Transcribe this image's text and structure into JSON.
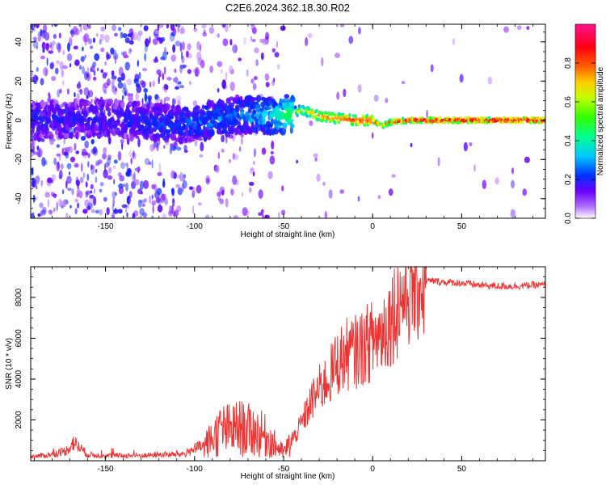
{
  "title": "C2E6.2024.362.18.30.R02",
  "chart_data": [
    {
      "type": "heatmap",
      "xlabel": "Height of straight line (km)",
      "ylabel": "Frequency (Hz)",
      "xlim": [
        -192,
        97
      ],
      "ylim": [
        -50,
        49
      ],
      "xticks": [
        -150,
        -100,
        -50,
        0,
        50
      ],
      "yticks": [
        -40,
        -20,
        0,
        20,
        40
      ],
      "colorbar": {
        "label": "Normalized spectral amplitude",
        "range": [
          0.0,
          1.0
        ],
        "ticks": [
          0.0,
          0.2,
          0.4,
          0.6,
          0.8
        ],
        "tick_labels": [
          "0.0",
          "0.2",
          "0.4",
          "0.6",
          "0.8"
        ],
        "colormap": [
          "#ffffff",
          "#7a00ff",
          "#0022ff",
          "#00e0ff",
          "#00ff44",
          "#f0ff00",
          "#ff7700",
          "#ff0000",
          "#ff0099"
        ]
      },
      "ridge": {
        "x": [
          -192,
          -150,
          -110,
          -90,
          -75,
          -60,
          -50,
          -40,
          -35,
          -30,
          -20,
          -10,
          0,
          5,
          10,
          20,
          40,
          97
        ],
        "frequency": [
          0,
          1,
          -2,
          0,
          3,
          2,
          3,
          5,
          4,
          2,
          1,
          0,
          0,
          -3,
          -1,
          0,
          0,
          0
        ],
        "amplitude": [
          0.2,
          0.2,
          0.25,
          0.3,
          0.3,
          0.35,
          0.45,
          0.6,
          0.7,
          0.75,
          0.8,
          0.85,
          0.85,
          0.7,
          0.85,
          0.9,
          0.95,
          0.95
        ]
      }
    },
    {
      "type": "line",
      "xlabel": "Height of straight line (km)",
      "ylabel": "SNR (10 * v/v)",
      "xlim": [
        -192,
        97
      ],
      "ylim": [
        0,
        9500
      ],
      "xticks": [
        -150,
        -100,
        -50,
        0,
        50
      ],
      "yticks": [
        2000,
        4000,
        6000,
        8000
      ],
      "color": "#ee3333",
      "series": [
        {
          "x": [
            -192,
            -180,
            -172,
            -168,
            -160,
            -150,
            -140,
            -130,
            -120,
            -110,
            -105,
            -100,
            -95,
            -90,
            -85,
            -80,
            -75,
            -70,
            -65,
            -60,
            -55,
            -50,
            -45,
            -40,
            -35,
            -30,
            -25,
            -20,
            -15,
            -10,
            -5,
            0,
            5,
            10,
            15,
            20,
            25,
            30,
            35,
            40,
            50,
            60,
            70,
            80,
            90,
            97
          ],
          "values": [
            200,
            300,
            500,
            900,
            300,
            250,
            250,
            250,
            300,
            300,
            350,
            600,
            700,
            1100,
            1500,
            1500,
            1600,
            1500,
            1400,
            1200,
            800,
            400,
            1000,
            1800,
            2800,
            3500,
            4000,
            4800,
            5200,
            5300,
            5600,
            5900,
            6300,
            7000,
            7800,
            8400,
            8700,
            8800,
            8800,
            8750,
            8700,
            8600,
            8550,
            8550,
            8600,
            8600
          ]
        }
      ]
    }
  ]
}
